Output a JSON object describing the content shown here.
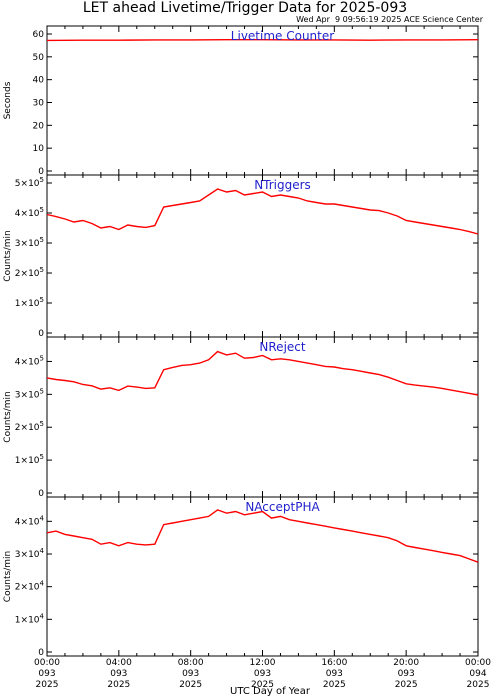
{
  "title": "LET ahead Livetime/Trigger Data for 2025-093",
  "timestamp": "Wed Apr  9 09:56:19 2025 ACE Science Center",
  "xlabel": "UTC Day of Year",
  "x_ticks": [
    {
      "hour": 0,
      "time": "00:00",
      "doy": "093",
      "year": "2025"
    },
    {
      "hour": 4,
      "time": "04:00",
      "doy": "093",
      "year": "2025"
    },
    {
      "hour": 8,
      "time": "08:00",
      "doy": "093",
      "year": "2025"
    },
    {
      "hour": 12,
      "time": "12:00",
      "doy": "093",
      "year": "2025"
    },
    {
      "hour": 16,
      "time": "16:00",
      "doy": "093",
      "year": "2025"
    },
    {
      "hour": 20,
      "time": "20:00",
      "doy": "093",
      "year": "2025"
    },
    {
      "hour": 24,
      "time": "00:00",
      "doy": "094",
      "year": "2025"
    }
  ],
  "colors": {
    "series": "#ff0000",
    "label": "#2222cc",
    "axis": "#000000"
  },
  "chart_data": [
    {
      "type": "line",
      "series": [
        {
          "name": "Livetime Counter"
        }
      ],
      "ylabel": "Seconds",
      "xlim": [
        0,
        24
      ],
      "ylim": [
        0,
        60
      ],
      "yticks": [
        {
          "v": 0,
          "t": "0"
        },
        {
          "v": 10,
          "t": "10"
        },
        {
          "v": 20,
          "t": "20"
        },
        {
          "v": 30,
          "t": "30"
        },
        {
          "v": 40,
          "t": "40"
        },
        {
          "v": 50,
          "t": "50"
        },
        {
          "v": 60,
          "t": "60"
        }
      ],
      "x": [
        0,
        2,
        4,
        6,
        8,
        10,
        12,
        14,
        16,
        18,
        20,
        22,
        24
      ],
      "y": [
        57.2,
        57.3,
        57.3,
        57.4,
        57.4,
        57.5,
        57.5,
        57.4,
        57.4,
        57.3,
        57.4,
        57.4,
        57.5
      ]
    },
    {
      "type": "line",
      "series": [
        {
          "name": "NTriggers"
        }
      ],
      "ylabel": "Counts/min",
      "xlim": [
        0,
        24
      ],
      "ylim": [
        0,
        500000
      ],
      "yticks": [
        {
          "v": 0,
          "t": "0",
          "e": ""
        },
        {
          "v": 100000,
          "t": "1×10",
          "e": "5"
        },
        {
          "v": 200000,
          "t": "2×10",
          "e": "5"
        },
        {
          "v": 300000,
          "t": "3×10",
          "e": "5"
        },
        {
          "v": 400000,
          "t": "4×10",
          "e": "5"
        },
        {
          "v": 500000,
          "t": "5×10",
          "e": "5"
        }
      ],
      "x": [
        0,
        0.5,
        1,
        1.5,
        2,
        2.5,
        3,
        3.5,
        4,
        4.5,
        5,
        5.5,
        6,
        6.5,
        7,
        7.5,
        8,
        8.5,
        9,
        9.5,
        10,
        10.5,
        11,
        11.5,
        12,
        12.5,
        13,
        13.5,
        14,
        14.5,
        15,
        15.5,
        16,
        16.5,
        17,
        17.5,
        18,
        18.5,
        19,
        19.5,
        20,
        20.5,
        21,
        21.5,
        22,
        22.5,
        23,
        23.5,
        24
      ],
      "y": [
        395000,
        388000,
        380000,
        370000,
        375000,
        365000,
        350000,
        355000,
        345000,
        360000,
        355000,
        352000,
        358000,
        420000,
        425000,
        430000,
        435000,
        440000,
        460000,
        480000,
        470000,
        475000,
        460000,
        465000,
        470000,
        455000,
        460000,
        455000,
        450000,
        440000,
        435000,
        430000,
        430000,
        425000,
        420000,
        415000,
        410000,
        408000,
        400000,
        390000,
        375000,
        370000,
        365000,
        360000,
        355000,
        350000,
        345000,
        338000,
        330000
      ]
    },
    {
      "type": "line",
      "series": [
        {
          "name": "NReject"
        }
      ],
      "ylabel": "Counts/min",
      "xlim": [
        0,
        24
      ],
      "ylim": [
        0,
        450000
      ],
      "yticks": [
        {
          "v": 0,
          "t": "0",
          "e": ""
        },
        {
          "v": 100000,
          "t": "1×10",
          "e": "5"
        },
        {
          "v": 200000,
          "t": "2×10",
          "e": "5"
        },
        {
          "v": 300000,
          "t": "3×10",
          "e": "5"
        },
        {
          "v": 400000,
          "t": "4×10",
          "e": "5"
        }
      ],
      "x": [
        0,
        0.5,
        1,
        1.5,
        2,
        2.5,
        3,
        3.5,
        4,
        4.5,
        5,
        5.5,
        6,
        6.5,
        7,
        7.5,
        8,
        8.5,
        9,
        9.5,
        10,
        10.5,
        11,
        11.5,
        12,
        12.5,
        13,
        13.5,
        14,
        14.5,
        15,
        15.5,
        16,
        16.5,
        17,
        17.5,
        18,
        18.5,
        19,
        19.5,
        20,
        20.5,
        21,
        21.5,
        22,
        22.5,
        23,
        23.5,
        24
      ],
      "y": [
        350000,
        345000,
        342000,
        338000,
        330000,
        326000,
        316000,
        320000,
        312000,
        325000,
        322000,
        318000,
        320000,
        375000,
        382000,
        388000,
        390000,
        395000,
        405000,
        430000,
        420000,
        425000,
        410000,
        412000,
        418000,
        405000,
        408000,
        405000,
        400000,
        395000,
        390000,
        385000,
        383000,
        378000,
        375000,
        370000,
        365000,
        360000,
        352000,
        342000,
        332000,
        328000,
        325000,
        322000,
        318000,
        313000,
        308000,
        303000,
        298000
      ]
    },
    {
      "type": "line",
      "series": [
        {
          "name": "NAcceptPHA"
        }
      ],
      "ylabel": "Counts/min",
      "xlim": [
        0,
        24
      ],
      "ylim": [
        0,
        45000
      ],
      "yticks": [
        {
          "v": 0,
          "t": "0",
          "e": ""
        },
        {
          "v": 10000,
          "t": "1×10",
          "e": "4"
        },
        {
          "v": 20000,
          "t": "2×10",
          "e": "4"
        },
        {
          "v": 30000,
          "t": "3×10",
          "e": "4"
        },
        {
          "v": 40000,
          "t": "4×10",
          "e": "4"
        }
      ],
      "x": [
        0,
        0.5,
        1,
        1.5,
        2,
        2.5,
        3,
        3.5,
        4,
        4.5,
        5,
        5.5,
        6,
        6.5,
        7,
        7.5,
        8,
        8.5,
        9,
        9.5,
        10,
        10.5,
        11,
        11.5,
        12,
        12.5,
        13,
        13.5,
        14,
        14.5,
        15,
        15.5,
        16,
        16.5,
        17,
        17.5,
        18,
        18.5,
        19,
        19.5,
        20,
        20.5,
        21,
        21.5,
        22,
        22.5,
        23,
        23.5,
        24
      ],
      "y": [
        36500,
        37000,
        36000,
        35500,
        35000,
        34500,
        33000,
        33500,
        32500,
        33500,
        33000,
        32800,
        33000,
        39000,
        39500,
        40000,
        40500,
        41000,
        41500,
        43500,
        42500,
        43000,
        42000,
        42500,
        43000,
        41000,
        41500,
        40500,
        40000,
        39500,
        39000,
        38500,
        38000,
        37500,
        37000,
        36500,
        36000,
        35500,
        35000,
        34000,
        32500,
        32000,
        31500,
        31000,
        30500,
        30000,
        29500,
        28500,
        27500
      ]
    }
  ]
}
